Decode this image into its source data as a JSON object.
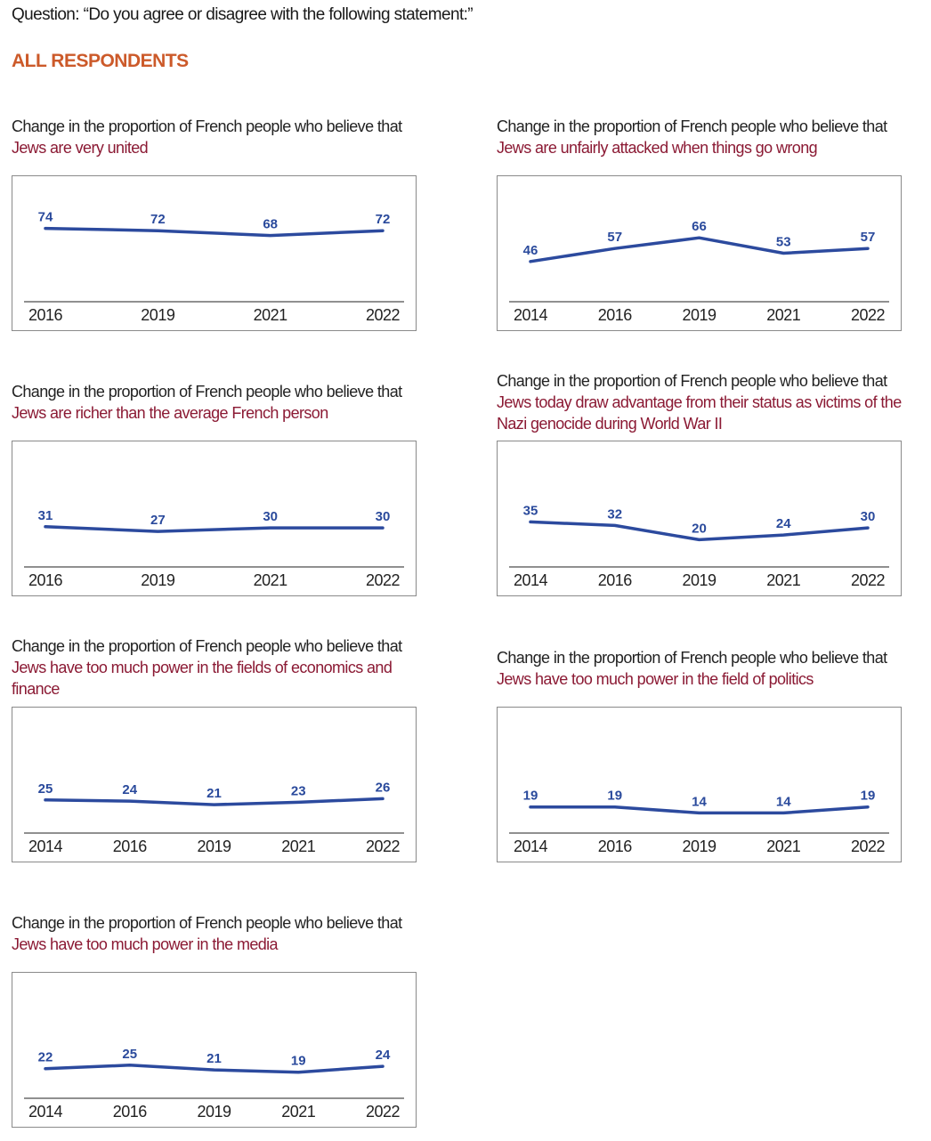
{
  "question": "Question: “Do you agree or disagree with the following statement:”",
  "section": "ALL RESPONDENTS",
  "line_color": "#2c4a9e",
  "chart_data": [
    {
      "type": "line",
      "title": "Change in the proportion of French people who believe that",
      "statement": "Jews are very united",
      "x": [
        "2016",
        "2019",
        "2021",
        "2022"
      ],
      "values": [
        74,
        72,
        68,
        72
      ]
    },
    {
      "type": "line",
      "title": "Change in the proportion of French people who believe that",
      "statement": "Jews are unfairly attacked when things go wrong",
      "x": [
        "2014",
        "2016",
        "2019",
        "2021",
        "2022"
      ],
      "values": [
        46,
        57,
        66,
        53,
        57
      ]
    },
    {
      "type": "line",
      "title": "Change in the proportion of French people who believe that",
      "statement": "Jews are richer than the average French person",
      "x": [
        "2016",
        "2019",
        "2021",
        "2022"
      ],
      "values": [
        31,
        27,
        30,
        30
      ]
    },
    {
      "type": "line",
      "title": "Change in the proportion of French people who believe that",
      "statement": "Jews today draw advantage from their status as victims of the Nazi genocide during World War II",
      "x": [
        "2014",
        "2016",
        "2019",
        "2021",
        "2022"
      ],
      "values": [
        35,
        32,
        20,
        24,
        30
      ]
    },
    {
      "type": "line",
      "title": "Change in the proportion of French people who believe that",
      "statement": "Jews have too much power in the fields of economics and finance",
      "x": [
        "2014",
        "2016",
        "2019",
        "2021",
        "2022"
      ],
      "values": [
        25,
        24,
        21,
        23,
        26
      ]
    },
    {
      "type": "line",
      "title": "Change in the proportion of French people who believe that",
      "statement": "Jews have too much power in the field of politics",
      "x": [
        "2014",
        "2016",
        "2019",
        "2021",
        "2022"
      ],
      "values": [
        19,
        19,
        14,
        14,
        19
      ]
    },
    {
      "type": "line",
      "title": "Change in the proportion of French people who believe that",
      "statement": "Jews have too much power in the media",
      "x": [
        "2014",
        "2016",
        "2019",
        "2021",
        "2022"
      ],
      "values": [
        22,
        25,
        21,
        19,
        24
      ]
    }
  ]
}
